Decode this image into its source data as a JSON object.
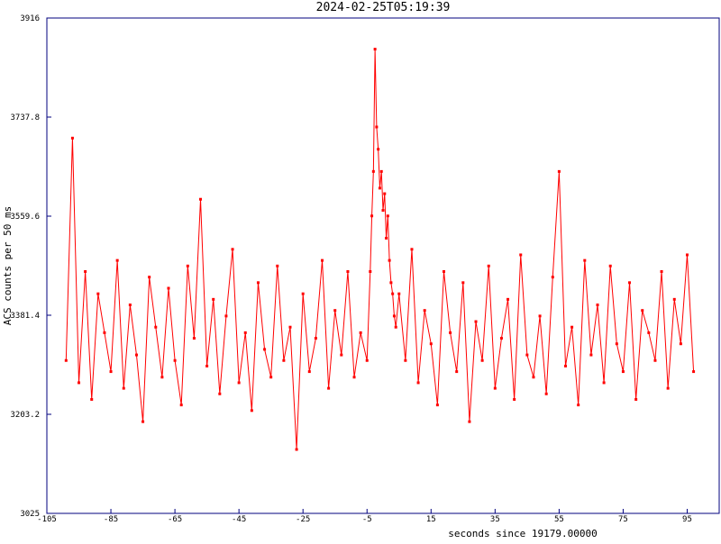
{
  "chart_data": {
    "type": "line",
    "title": "2024-02-25T05:19:39",
    "xlabel": "seconds since 19179.00000",
    "ylabel": "ACS counts per 50 ms",
    "xlim": [
      -105,
      105
    ],
    "ylim": [
      3025,
      3916
    ],
    "xticks": [
      -105,
      -85,
      -65,
      -45,
      -25,
      -5,
      15,
      35,
      55,
      75,
      95
    ],
    "yticks": [
      3025,
      3203.2,
      3381.4,
      3559.6,
      3737.8,
      3916
    ],
    "series": [
      {
        "color": "#ff0000",
        "x": [
          -99,
          -97,
          -95,
          -93,
          -91,
          -89,
          -87,
          -85,
          -83,
          -81,
          -79,
          -77,
          -75,
          -73,
          -71,
          -69,
          -67,
          -65,
          -63,
          -61,
          -59,
          -57,
          -55,
          -53,
          -51,
          -49,
          -47,
          -45,
          -43,
          -41,
          -39,
          -37,
          -35,
          -33,
          -31,
          -29,
          -27,
          -25,
          -23,
          -21,
          -19,
          -17,
          -15,
          -13,
          -11,
          -9,
          -7,
          -5,
          -4,
          -3.5,
          -3,
          -2.5,
          -2,
          -1.5,
          -1,
          -0.5,
          0,
          0.5,
          1,
          1.5,
          2,
          2.5,
          3,
          3.5,
          4,
          5,
          7,
          9,
          11,
          13,
          15,
          17,
          19,
          21,
          23,
          25,
          27,
          29,
          31,
          33,
          35,
          37,
          39,
          41,
          43,
          45,
          47,
          49,
          51,
          53,
          55,
          57,
          59,
          61,
          63,
          65,
          67,
          69,
          71,
          73,
          75,
          77,
          79,
          81,
          83,
          85,
          87,
          89,
          91,
          93,
          95,
          97
        ],
        "values": [
          3300,
          3700,
          3260,
          3460,
          3230,
          3420,
          3350,
          3280,
          3480,
          3250,
          3400,
          3310,
          3190,
          3450,
          3360,
          3270,
          3430,
          3300,
          3220,
          3470,
          3340,
          3590,
          3290,
          3410,
          3240,
          3380,
          3500,
          3260,
          3350,
          3210,
          3440,
          3320,
          3270,
          3470,
          3300,
          3360,
          3140,
          3420,
          3280,
          3340,
          3480,
          3250,
          3390,
          3310,
          3460,
          3270,
          3350,
          3300,
          3460,
          3560,
          3640,
          3860,
          3720,
          3680,
          3610,
          3640,
          3570,
          3600,
          3520,
          3560,
          3480,
          3440,
          3420,
          3380,
          3360,
          3420,
          3300,
          3500,
          3260,
          3390,
          3330,
          3220,
          3460,
          3350,
          3280,
          3440,
          3190,
          3370,
          3300,
          3470,
          3250,
          3340,
          3410,
          3230,
          3490,
          3310,
          3270,
          3380,
          3240,
          3450,
          3640,
          3290,
          3360,
          3220,
          3480,
          3310,
          3400,
          3260,
          3470,
          3330,
          3280,
          3440,
          3230,
          3390,
          3350,
          3300,
          3460,
          3250,
          3410,
          3330,
          3490,
          3280
        ]
      }
    ]
  }
}
